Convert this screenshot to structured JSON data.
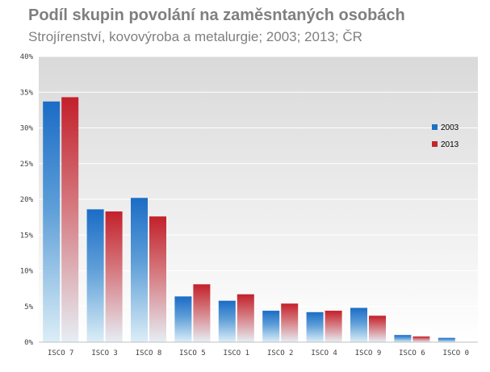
{
  "header": {
    "title": "Podíl skupin povolání na zaměsntaných osobách",
    "subtitle": "Strojírenství, kovovýroba a metalurgie; 2003; 2013; ČR"
  },
  "chart_data": {
    "type": "bar",
    "title": "Podíl skupin povolání na zaměsntaných osobách",
    "subtitle": "Strojírenství, kovovýroba a metalurgie; 2003; 2013; ČR",
    "categories": [
      "ISCO 7",
      "ISCO 3",
      "ISCO 8",
      "ISCO 5",
      "ISCO 1",
      "ISCO 2",
      "ISCO 4",
      "ISCO 9",
      "ISCO 6",
      "ISCO 0"
    ],
    "series": [
      {
        "name": "2003",
        "values": [
          33.7,
          18.6,
          20.2,
          6.4,
          5.8,
          4.4,
          4.2,
          4.8,
          1.0,
          0.6
        ],
        "color": "#1f6fc4"
      },
      {
        "name": "2013",
        "values": [
          34.3,
          18.3,
          17.6,
          8.1,
          6.7,
          5.4,
          4.4,
          3.7,
          0.8,
          0.0
        ],
        "color": "#c0272d"
      }
    ],
    "yticks": [
      "0%",
      "5%",
      "10%",
      "15%",
      "20%",
      "25%",
      "30%",
      "35%",
      "40%"
    ],
    "ylim": [
      0,
      40
    ],
    "grid": true,
    "legend_position": "right"
  }
}
